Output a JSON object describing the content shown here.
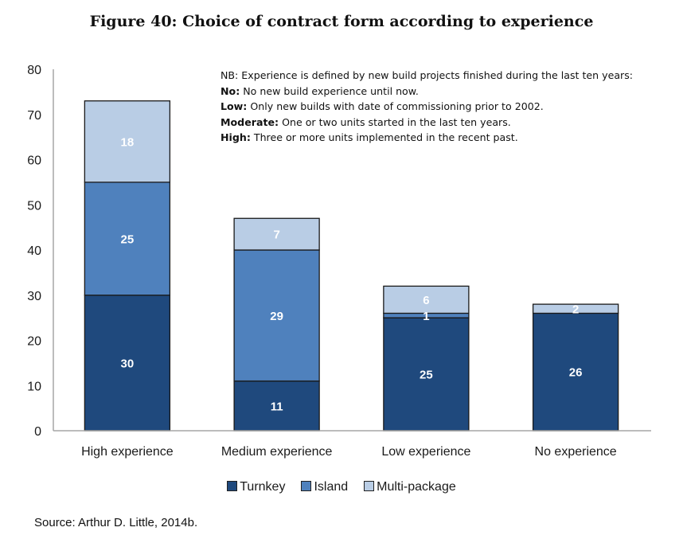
{
  "figure": {
    "title": "Figure 40: Choice of contract form according to experience",
    "source": "Source: Arthur D. Little, 2014b."
  },
  "note": {
    "intro": "NB: Experience is defined by new build projects finished during the last ten years:",
    "lines": [
      {
        "term": "No:",
        "text": " No new build experience until now."
      },
      {
        "term": "Low:",
        "text": " Only new builds with date of commissioning prior to 2002."
      },
      {
        "term": "Moderate:",
        "text": " One or two units started in the last ten years."
      },
      {
        "term": "High:",
        "text": " Three or more units implemented in the recent past."
      }
    ]
  },
  "colors": {
    "Turnkey": "#1f497d",
    "Island": "#4f81bd",
    "Multi-package": "#b9cde5",
    "axis": "#a6a6a6",
    "outline": "#1a1a1a"
  },
  "chart_data": {
    "type": "bar",
    "stacked": true,
    "title": "Figure 40: Choice of contract form according to experience",
    "xlabel": "",
    "ylabel": "",
    "categories": [
      "High experience",
      "Medium experience",
      "Low experience",
      "No experience"
    ],
    "series": [
      {
        "name": "Turnkey",
        "values": [
          30,
          11,
          25,
          26
        ]
      },
      {
        "name": "Island",
        "values": [
          25,
          29,
          1,
          0
        ]
      },
      {
        "name": "Multi-package",
        "values": [
          18,
          7,
          6,
          2
        ]
      }
    ],
    "yticks": [
      0,
      10,
      20,
      30,
      40,
      50,
      60,
      70,
      80
    ],
    "ylim": [
      0,
      80
    ],
    "grid": false,
    "legend_position": "bottom",
    "data_labels": true
  }
}
